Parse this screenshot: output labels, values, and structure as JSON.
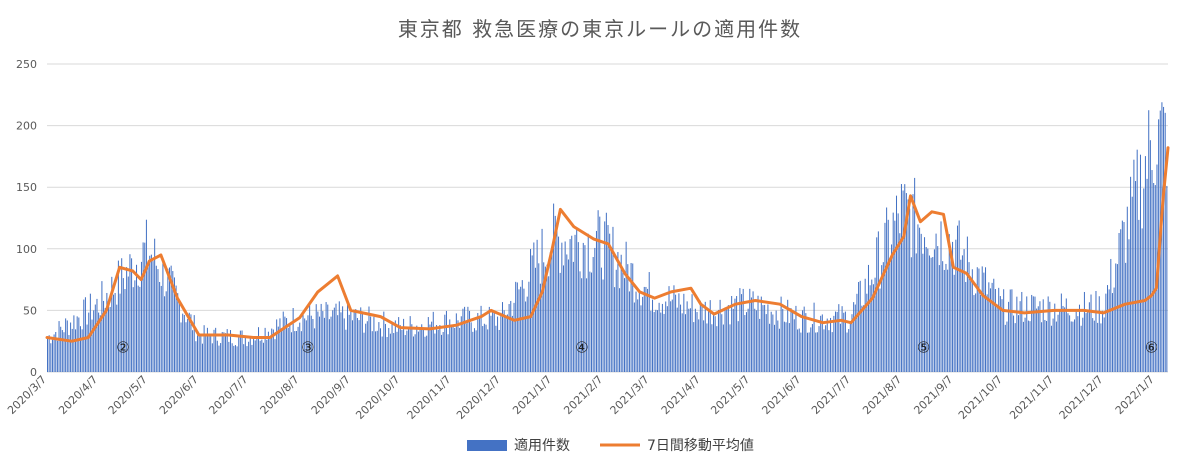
{
  "chart_data": {
    "type": "bar",
    "title": "東京都 救急医療の東京ルールの適用件数",
    "xlabel": "",
    "ylabel": "",
    "ylim": [
      0,
      250
    ],
    "yticks": [
      0,
      50,
      100,
      150,
      200,
      250
    ],
    "grid": true,
    "legend_position": "bottom",
    "date_start": "2020/3/7",
    "date_end": "2022/1/15",
    "tick_labels": [
      "2020/3/7",
      "2020/4/7",
      "2020/5/7",
      "2020/6/7",
      "2020/7/7",
      "2020/8/7",
      "2020/9/7",
      "2020/10/7",
      "2020/11/7",
      "2020/12/7",
      "2021/1/7",
      "2021/2/7",
      "2021/3/7",
      "2021/4/7",
      "2021/5/7",
      "2021/6/7",
      "2021/7/7",
      "2021/8/7",
      "2021/9/7",
      "2021/10/7",
      "2021/11/7",
      "2021/12/7",
      "2022/1/7"
    ],
    "series": [
      {
        "name": "適用件数",
        "kind": "bar",
        "color": "#4472c4",
        "x": [
          "2020/3/7",
          "2020/4/7",
          "2020/5/7",
          "2020/6/7",
          "2020/7/7",
          "2020/8/7",
          "2020/9/7",
          "2020/10/7",
          "2020/11/7",
          "2020/12/7",
          "2021/1/7",
          "2021/2/7",
          "2021/3/7",
          "2021/4/7",
          "2021/5/7",
          "2021/6/7",
          "2021/7/7",
          "2021/8/7",
          "2021/9/7",
          "2021/10/7",
          "2021/11/7",
          "2021/12/7",
          "2022/1/7"
        ],
        "values": [
          28,
          55,
          100,
          30,
          28,
          45,
          45,
          36,
          42,
          43,
          108,
          104,
          65,
          50,
          55,
          44,
          44,
          130,
          105,
          53,
          52,
          52,
          190
        ]
      },
      {
        "name": "7日間移動平均値",
        "kind": "line",
        "color": "#ed7d31",
        "x": [
          "2020/3/7",
          "2020/3/22",
          "2020/4/1",
          "2020/4/12",
          "2020/4/20",
          "2020/4/28",
          "2020/5/3",
          "2020/5/8",
          "2020/5/15",
          "2020/5/25",
          "2020/6/7",
          "2020/6/25",
          "2020/7/10",
          "2020/7/20",
          "2020/8/7",
          "2020/8/18",
          "2020/8/30",
          "2020/9/7",
          "2020/9/25",
          "2020/10/7",
          "2020/10/25",
          "2020/11/10",
          "2020/11/25",
          "2020/12/1",
          "2020/12/15",
          "2020/12/25",
          "2021/1/1",
          "2021/1/7",
          "2021/1/12",
          "2021/1/20",
          "2021/2/1",
          "2021/2/10",
          "2021/2/20",
          "2021/3/1",
          "2021/3/10",
          "2021/3/20",
          "2021/4/1",
          "2021/4/7",
          "2021/4/15",
          "2021/4/28",
          "2021/5/10",
          "2021/5/25",
          "2021/6/7",
          "2021/6/20",
          "2021/7/1",
          "2021/7/7",
          "2021/7/20",
          "2021/8/1",
          "2021/8/8",
          "2021/8/12",
          "2021/8/18",
          "2021/8/25",
          "2021/9/1",
          "2021/9/7",
          "2021/9/15",
          "2021/9/25",
          "2021/10/7",
          "2021/10/20",
          "2021/11/7",
          "2021/11/25",
          "2021/12/7",
          "2021/12/20",
          "2022/1/1",
          "2022/1/5",
          "2022/1/8",
          "2022/1/12",
          "2022/1/15"
        ],
        "values": [
          28,
          25,
          28,
          50,
          85,
          82,
          75,
          90,
          95,
          60,
          30,
          30,
          28,
          28,
          44,
          65,
          78,
          50,
          45,
          36,
          35,
          38,
          45,
          50,
          42,
          45,
          65,
          100,
          132,
          118,
          108,
          104,
          80,
          65,
          60,
          65,
          68,
          55,
          47,
          55,
          58,
          55,
          45,
          40,
          42,
          40,
          60,
          95,
          110,
          143,
          122,
          130,
          128,
          85,
          80,
          62,
          50,
          48,
          50,
          50,
          48,
          55,
          58,
          62,
          68,
          140,
          182
        ]
      }
    ],
    "annotations": [
      {
        "text": "②",
        "x": "2020/4/22",
        "y": 20
      },
      {
        "text": "③",
        "x": "2020/8/12",
        "y": 20
      },
      {
        "text": "④",
        "x": "2021/1/25",
        "y": 20
      },
      {
        "text": "⑤",
        "x": "2021/8/20",
        "y": 20
      },
      {
        "text": "⑥",
        "x": "2022/1/5",
        "y": 20
      }
    ]
  }
}
